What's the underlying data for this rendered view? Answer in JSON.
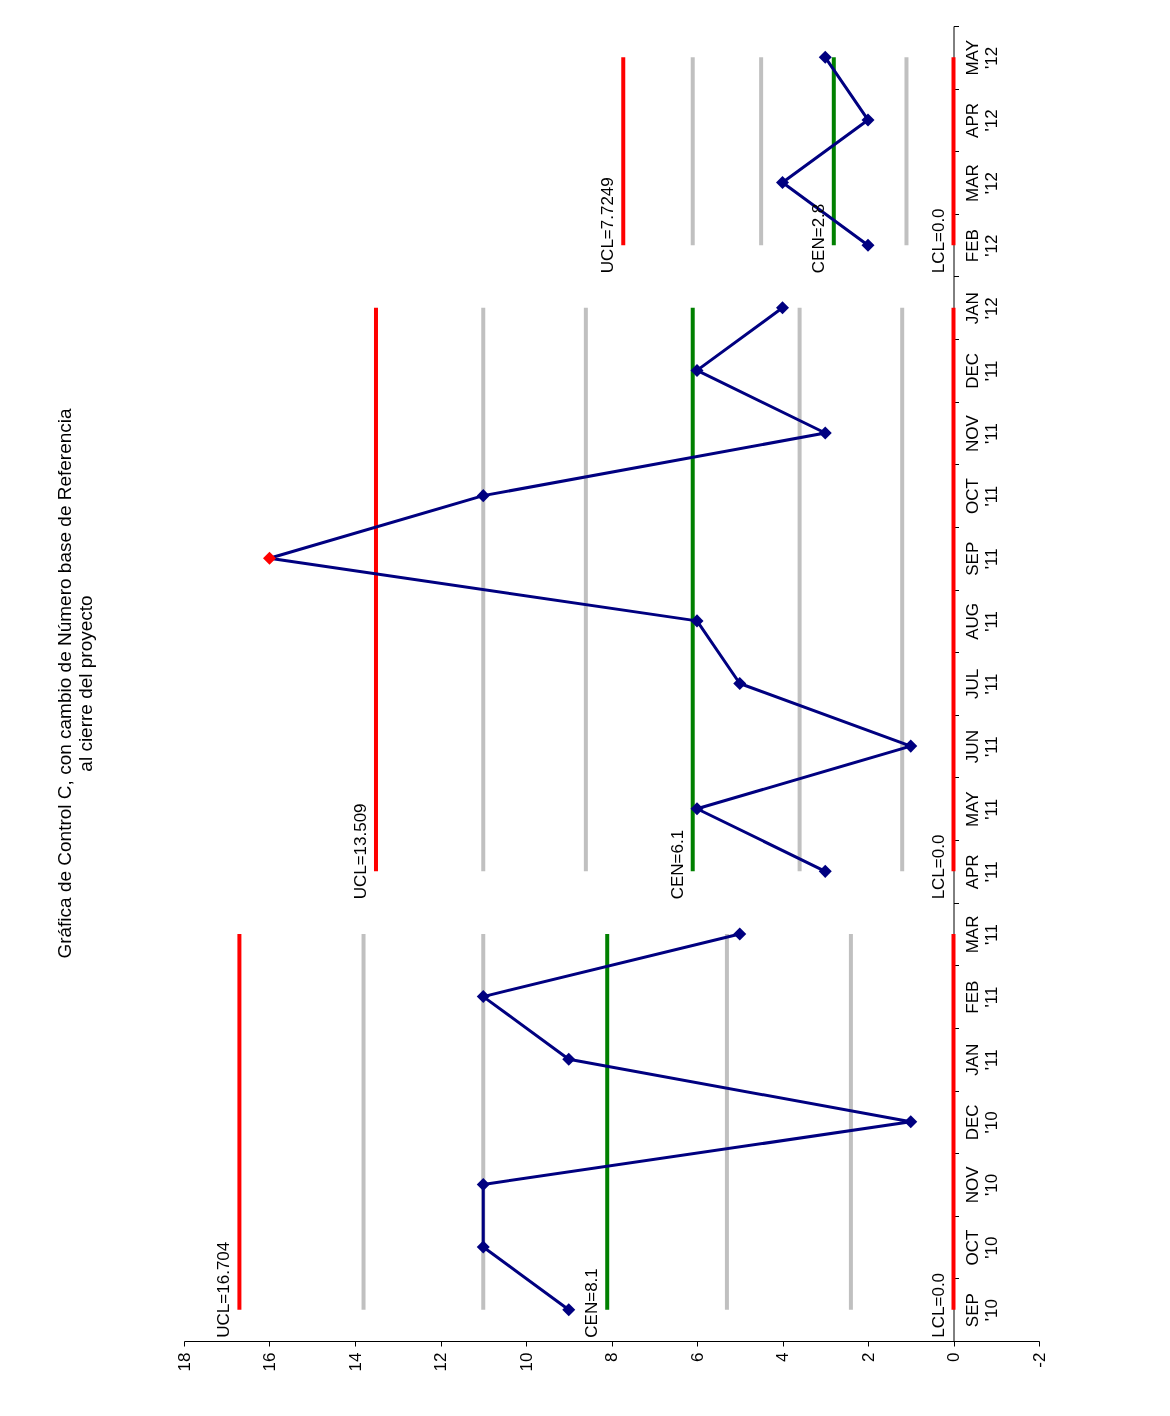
{
  "chart_data": {
    "type": "line",
    "orientation": "horizontal",
    "title": "Gráfica de Control C, con cambio de Número  base de Referencia\nal cierre del proyecto",
    "categories": [
      "MAY '12",
      "APR '12",
      "MAR '12",
      "FEB '12",
      "JAN '12",
      "DEC '11",
      "NOV '11",
      "OCT '11",
      "SEP '11",
      "AUG '11",
      "JUL '11",
      "JUN '11",
      "MAY '11",
      "APR '11",
      "MAR '11",
      "FEB '11",
      "JAN '11",
      "DEC '10",
      "NOV '10",
      "OCT '10",
      "SEP '10"
    ],
    "xlim": [
      18,
      -2
    ],
    "xticks": [
      18,
      16,
      14,
      12,
      10,
      8,
      6,
      4,
      2,
      0,
      -2
    ],
    "grid": false,
    "series": [
      {
        "color": "#c0c0c0",
        "values": [
          null,
          null,
          null,
          null,
          null,
          null,
          null,
          null,
          null,
          null,
          null,
          null,
          null,
          null,
          13.8,
          13.8,
          13.8,
          13.8,
          13.8,
          13.8,
          13.8
        ]
      },
      {
        "color": "#c0c0c0",
        "values": [
          null,
          null,
          null,
          null,
          null,
          null,
          null,
          null,
          null,
          null,
          null,
          null,
          null,
          null,
          11.0,
          11.0,
          11.0,
          11.0,
          11.0,
          11.0,
          11.0
        ]
      },
      {
        "color": "#c0c0c0",
        "values": [
          null,
          null,
          null,
          null,
          null,
          null,
          null,
          null,
          null,
          null,
          null,
          null,
          null,
          null,
          5.3,
          5.3,
          5.3,
          5.3,
          5.3,
          5.3,
          5.3
        ]
      },
      {
        "color": "#c0c0c0",
        "values": [
          null,
          null,
          null,
          null,
          null,
          null,
          null,
          null,
          null,
          null,
          null,
          null,
          null,
          null,
          2.4,
          2.4,
          2.4,
          2.4,
          2.4,
          2.4,
          2.4
        ]
      },
      {
        "color": "#c0c0c0",
        "values": [
          null,
          null,
          null,
          null,
          11.0,
          11.0,
          11.0,
          11.0,
          11.0,
          11.0,
          11.0,
          11.0,
          11.0,
          11.0,
          null,
          null,
          null,
          null,
          null,
          null,
          null
        ]
      },
      {
        "color": "#c0c0c0",
        "values": [
          null,
          null,
          null,
          null,
          8.6,
          8.6,
          8.6,
          8.6,
          8.6,
          8.6,
          8.6,
          8.6,
          8.6,
          8.6,
          null,
          null,
          null,
          null,
          null,
          null,
          null
        ]
      },
      {
        "color": "#c0c0c0",
        "values": [
          null,
          null,
          null,
          null,
          3.6,
          3.6,
          3.6,
          3.6,
          3.6,
          3.6,
          3.6,
          3.6,
          3.6,
          3.6,
          null,
          null,
          null,
          null,
          null,
          null,
          null
        ]
      },
      {
        "color": "#c0c0c0",
        "values": [
          null,
          null,
          null,
          null,
          1.2,
          1.2,
          1.2,
          1.2,
          1.2,
          1.2,
          1.2,
          1.2,
          1.2,
          1.2,
          null,
          null,
          null,
          null,
          null,
          null,
          null
        ]
      },
      {
        "color": "#c0c0c0",
        "values": [
          6.1,
          6.1,
          6.1,
          6.1,
          null,
          null,
          null,
          null,
          null,
          null,
          null,
          null,
          null,
          null,
          null,
          null,
          null,
          null,
          null,
          null,
          null
        ]
      },
      {
        "color": "#c0c0c0",
        "values": [
          4.5,
          4.5,
          4.5,
          4.5,
          null,
          null,
          null,
          null,
          null,
          null,
          null,
          null,
          null,
          null,
          null,
          null,
          null,
          null,
          null,
          null,
          null
        ]
      },
      {
        "color": "#c0c0c0",
        "values": [
          1.1,
          1.1,
          1.1,
          1.1,
          null,
          null,
          null,
          null,
          null,
          null,
          null,
          null,
          null,
          null,
          null,
          null,
          null,
          null,
          null,
          null,
          null
        ]
      },
      {
        "color": "#ff0000",
        "values": [
          null,
          null,
          null,
          null,
          null,
          null,
          null,
          null,
          null,
          null,
          null,
          null,
          null,
          null,
          16.704,
          16.704,
          16.704,
          16.704,
          16.704,
          16.704,
          16.704
        ]
      },
      {
        "color": "#ff0000",
        "values": [
          null,
          null,
          null,
          null,
          13.509,
          13.509,
          13.509,
          13.509,
          13.509,
          13.509,
          13.509,
          13.509,
          13.509,
          13.509,
          null,
          null,
          null,
          null,
          null,
          null,
          null
        ]
      },
      {
        "color": "#ff0000",
        "values": [
          7.7249,
          7.7249,
          7.7249,
          7.7249,
          null,
          null,
          null,
          null,
          null,
          null,
          null,
          null,
          null,
          null,
          null,
          null,
          null,
          null,
          null,
          null,
          null
        ]
      },
      {
        "color": "#008000",
        "values": [
          null,
          null,
          null,
          null,
          null,
          null,
          null,
          null,
          null,
          null,
          null,
          null,
          null,
          null,
          8.1,
          8.1,
          8.1,
          8.1,
          8.1,
          8.1,
          8.1
        ]
      },
      {
        "color": "#008000",
        "values": [
          null,
          null,
          null,
          null,
          6.1,
          6.1,
          6.1,
          6.1,
          6.1,
          6.1,
          6.1,
          6.1,
          6.1,
          6.1,
          null,
          null,
          null,
          null,
          null,
          null,
          null
        ]
      },
      {
        "color": "#008000",
        "values": [
          2.8,
          2.8,
          2.8,
          2.8,
          null,
          null,
          null,
          null,
          null,
          null,
          null,
          null,
          null,
          null,
          null,
          null,
          null,
          null,
          null,
          null,
          null
        ]
      },
      {
        "color": "#ff0000",
        "values": [
          null,
          null,
          null,
          null,
          null,
          null,
          null,
          null,
          null,
          null,
          null,
          null,
          null,
          null,
          0,
          0,
          0,
          0,
          0,
          0,
          0
        ]
      },
      {
        "color": "#ff0000",
        "values": [
          null,
          null,
          null,
          null,
          0,
          0,
          0,
          0,
          0,
          0,
          0,
          0,
          0,
          0,
          null,
          null,
          null,
          null,
          null,
          null,
          null
        ]
      },
      {
        "color": "#ff0000",
        "values": [
          0,
          0,
          0,
          0,
          null,
          null,
          null,
          null,
          null,
          null,
          null,
          null,
          null,
          null,
          null,
          null,
          null,
          null,
          null,
          null,
          null
        ]
      },
      {
        "color": "#000080",
        "marker": "diamond",
        "values": [
          null,
          null,
          null,
          null,
          null,
          null,
          null,
          null,
          null,
          null,
          null,
          null,
          null,
          null,
          5,
          11,
          9,
          1,
          11,
          11,
          9
        ]
      },
      {
        "color": "#000080",
        "marker": "diamond",
        "values": [
          null,
          null,
          null,
          null,
          4,
          6,
          3,
          11,
          16,
          6,
          5,
          1,
          6,
          3,
          null,
          null,
          null,
          null,
          null,
          null,
          null
        ],
        "colors": [
          null,
          null,
          null,
          null,
          "#000080",
          "#000080",
          "#000080",
          "#000080",
          "#ff0000",
          "#000080",
          "#000080",
          "#000080",
          "#000080",
          "#000080",
          null,
          null,
          null,
          null,
          null,
          null,
          null
        ]
      },
      {
        "color": "#000080",
        "marker": "diamond",
        "values": [
          3,
          2,
          4,
          2,
          null,
          null,
          null,
          null,
          null,
          null,
          null,
          null,
          null,
          null,
          null,
          null,
          null,
          null,
          null,
          null,
          null
        ]
      }
    ],
    "annotations": [
      {
        "text": "UCL=16.704",
        "x": 16.704,
        "y": "SEP '10"
      },
      {
        "text": "CEN=8.1",
        "x": 8.1,
        "y": "SEP '10"
      },
      {
        "text": "LCL=0.0",
        "x": 0,
        "y": "SEP '10"
      },
      {
        "text": "UCL=13.509",
        "x": 13.509,
        "y": "APR '11"
      },
      {
        "text": "CEN=6.1",
        "x": 6.1,
        "y": "APR '11"
      },
      {
        "text": "LCL=0.0",
        "x": 0,
        "y": "APR '11"
      },
      {
        "text": "UCL=7.7249",
        "x": 7.7249,
        "y": "FEB '12"
      },
      {
        "text": "CEN=2.8",
        "x": 2.8,
        "y": "FEB '12"
      },
      {
        "text": "LCL=0.0",
        "x": 0,
        "y": "FEB '12"
      }
    ]
  }
}
